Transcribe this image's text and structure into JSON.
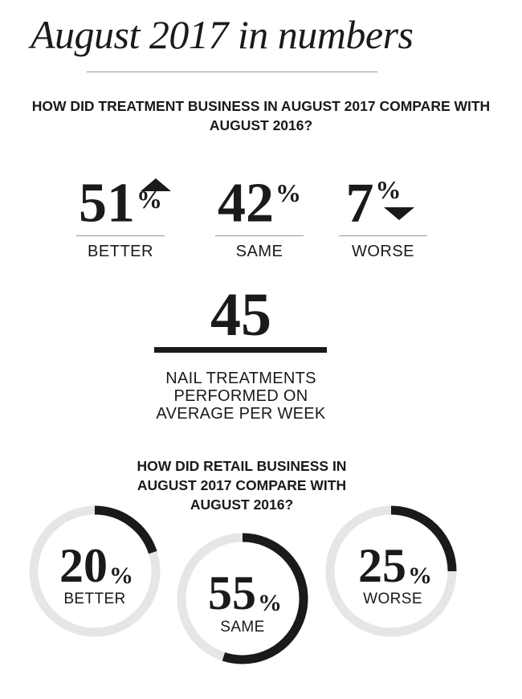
{
  "title": "August 2017 in numbers",
  "treatment": {
    "question": "HOW DID TREATMENT BUSINESS IN AUGUST 2017 COMPARE WITH AUGUST 2016?",
    "percent_sign": "%",
    "items": [
      {
        "value": "51",
        "label": "BETTER",
        "arrow": "up-arrow-icon"
      },
      {
        "value": "42",
        "label": "SAME",
        "arrow": ""
      },
      {
        "value": "7",
        "label": "WORSE",
        "arrow": "down-arrow-icon"
      }
    ]
  },
  "nail": {
    "value": "45",
    "label_lines": [
      "NAIL TREATMENTS",
      "PERFORMED ON",
      "AVERAGE PER WEEK"
    ]
  },
  "retail": {
    "question": "HOW DID RETAIL BUSINESS IN AUGUST 2017 COMPARE WITH AUGUST 2016?",
    "percent_sign": "%",
    "items": [
      {
        "value": "20",
        "label": "BETTER"
      },
      {
        "value": "55",
        "label": "SAME"
      },
      {
        "value": "25",
        "label": "WORSE"
      }
    ]
  },
  "chart_data": [
    {
      "type": "bar",
      "categories": [
        "BETTER",
        "SAME",
        "WORSE"
      ],
      "values": [
        51,
        42,
        7
      ],
      "title": "HOW DID TREATMENT BUSINESS IN AUGUST 2017 COMPARE WITH AUGUST 2016?"
    },
    {
      "type": "pie",
      "categories": [
        "BETTER",
        "SAME",
        "WORSE"
      ],
      "values": [
        20,
        55,
        25
      ],
      "title": "HOW DID RETAIL BUSINESS IN AUGUST 2017 COMPARE WITH AUGUST 2016?"
    }
  ],
  "colors": {
    "ink": "#1a1a1a",
    "track": "#e6e6e6",
    "rule": "#9a9a9a"
  }
}
